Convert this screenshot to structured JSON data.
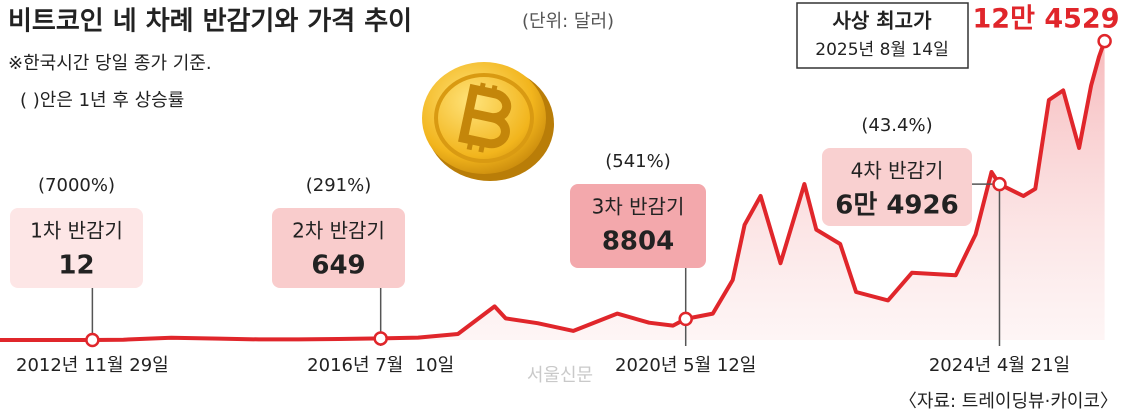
{
  "chart_data": {
    "type": "line",
    "title": "비트코인 네 차례 반감기와 가격 추이",
    "subtitle": "(단위: 달러)",
    "notes": [
      "※한국시간 당일 종가 기준.",
      "( )안은 1년 후 상승률"
    ],
    "source": "〈자료: 트레이딩뷰·카이코〉",
    "watermark": "서울신문",
    "color": "#e0262b",
    "xlim": [
      2011.75,
      2025.65
    ],
    "ylim": [
      0,
      140000
    ],
    "x": [
      2011.75,
      2012.5,
      2012.91,
      2013.3,
      2013.9,
      2014.5,
      2015.0,
      2015.5,
      2016.0,
      2016.53,
      2017.0,
      2017.5,
      2017.96,
      2018.1,
      2018.5,
      2018.95,
      2019.5,
      2019.9,
      2020.2,
      2020.36,
      2020.7,
      2020.95,
      2021.1,
      2021.3,
      2021.55,
      2021.85,
      2022.0,
      2022.3,
      2022.5,
      2022.9,
      2023.2,
      2023.75,
      2024.0,
      2024.2,
      2024.3,
      2024.6,
      2024.75,
      2024.92,
      2025.1,
      2025.3,
      2025.45,
      2025.55,
      2025.62
    ],
    "values": [
      5,
      8,
      12,
      120,
      900,
      600,
      250,
      250,
      420,
      649,
      1000,
      2500,
      14000,
      9000,
      7000,
      3800,
      11000,
      7200,
      6000,
      8804,
      11000,
      25000,
      48000,
      60000,
      32000,
      65000,
      46000,
      40000,
      20000,
      16500,
      28000,
      27000,
      44000,
      70000,
      64926,
      60000,
      63000,
      100000,
      104000,
      80000,
      106000,
      118000,
      124529
    ],
    "annotations": [
      {
        "title": "1차 반감기",
        "value": 12,
        "change": "(7000%)",
        "date": "2012년 11월 29일",
        "x": 2012.91
      },
      {
        "title": "2차 반감기",
        "value": 649,
        "change": "(291%)",
        "date": "2016년 7월  10일",
        "x": 2016.53
      },
      {
        "title": "3차 반감기",
        "value": 8804,
        "change": "(541%)",
        "date": "2020년 5월 12일",
        "x": 2020.36
      },
      {
        "title": "4차 반감기",
        "value": 64926,
        "value_label": "6만 4926",
        "change": "(43.4%)",
        "date": "2024년 4월 21일",
        "x": 2024.3
      }
    ],
    "record": {
      "title": "사상 최고가",
      "date": "2025년 8월 14일",
      "x": 2025.62,
      "value": 124529,
      "value_label": "12만 4529"
    }
  }
}
